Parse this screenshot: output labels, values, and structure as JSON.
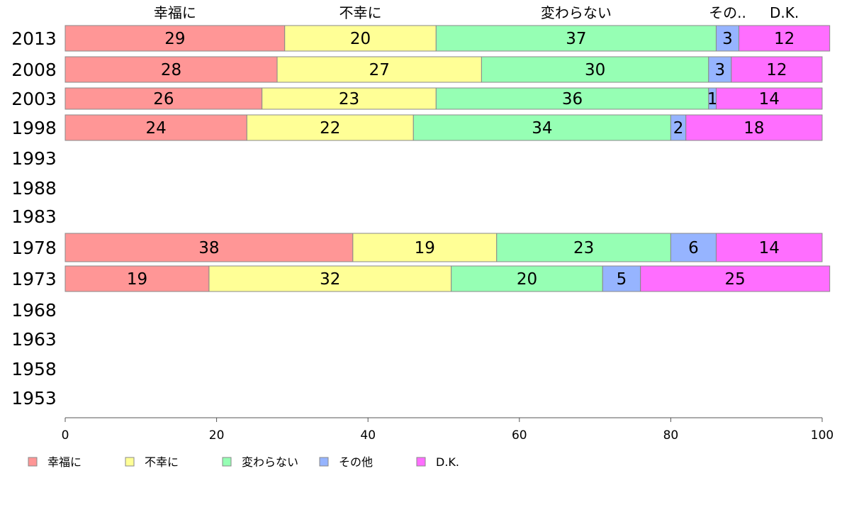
{
  "chart_data": {
    "type": "bar",
    "orientation": "horizontal",
    "stacked": true,
    "categories": [
      "2013",
      "2008",
      "2003",
      "1998",
      "1993",
      "1988",
      "1983",
      "1978",
      "1973",
      "1968",
      "1963",
      "1958",
      "1953"
    ],
    "series": [
      {
        "name": "幸福に",
        "color": "#ff9696",
        "values": [
          29,
          28,
          26,
          24,
          null,
          null,
          null,
          38,
          19,
          null,
          null,
          null,
          null
        ]
      },
      {
        "name": "不幸に",
        "color": "#ffff96",
        "values": [
          20,
          27,
          23,
          22,
          null,
          null,
          null,
          19,
          32,
          null,
          null,
          null,
          null
        ]
      },
      {
        "name": "変わらない",
        "color": "#96ffb4",
        "values": [
          37,
          30,
          36,
          34,
          null,
          null,
          null,
          23,
          20,
          null,
          null,
          null,
          null
        ]
      },
      {
        "name": "その他",
        "color": "#96b4ff",
        "values": [
          3,
          3,
          1,
          2,
          null,
          null,
          null,
          6,
          5,
          null,
          null,
          null,
          null
        ]
      },
      {
        "name": "D.K.",
        "color": "#ff6eff",
        "values": [
          12,
          12,
          14,
          18,
          null,
          null,
          null,
          14,
          25,
          null,
          null,
          null,
          null
        ]
      }
    ],
    "top_labels": [
      "幸福に",
      "不幸に",
      "変わらない",
      "その..",
      "D.K."
    ],
    "x_ticks": [
      "0",
      "20",
      "40",
      "60",
      "80",
      "100"
    ],
    "xlim": [
      0,
      100
    ],
    "grid": false,
    "legend_position": "bottom-left"
  }
}
